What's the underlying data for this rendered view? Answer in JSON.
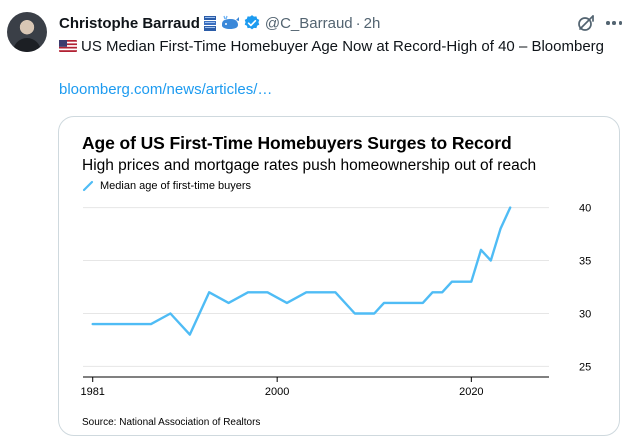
{
  "author": {
    "name": "Christophe Barraud",
    "handle": "@C_Barraud",
    "separator": "·",
    "time": "2h"
  },
  "icons": {
    "avatar": "avatar",
    "name_emojis": [
      "stacked-books-icon",
      "whale-icon"
    ],
    "verified": "verified-badge-icon",
    "grok": "grok-icon",
    "more": "more-options-icon",
    "flag": "us-flag-icon"
  },
  "colors": {
    "link": "#1d9bf0",
    "verified": "#1d9bf0",
    "chart_line": "#4fbcf5",
    "gridline": "#e6e6e6"
  },
  "tweet": {
    "text": "US Median First-Time Homebuyer Age Now at Record-High of 40 – Bloomberg",
    "link": "bloomberg.com/news/articles/…"
  },
  "chart_data": {
    "type": "line",
    "title": "Age of US First-Time Homebuyers Surges to Record",
    "subtitle": "High prices and mortgage rates push homeownership out of reach",
    "legend": [
      "Median age of first-time buyers"
    ],
    "source": "Source: National Association of Realtors",
    "x_ticks": [
      1981,
      2000,
      2020
    ],
    "y_ticks": [
      25,
      30,
      35,
      40
    ],
    "xlim": [
      1980,
      2028
    ],
    "ylim": [
      24,
      41
    ],
    "grid": "horizontal",
    "series": [
      {
        "name": "Median age of first-time buyers",
        "x": [
          1981,
          1985,
          1987,
          1989,
          1991,
          1993,
          1995,
          1997,
          1999,
          2001,
          2003,
          2004,
          2006,
          2008,
          2010,
          2011,
          2013,
          2015,
          2016,
          2017,
          2018,
          2019,
          2020,
          2021,
          2022,
          2023,
          2024
        ],
        "y": [
          29,
          29,
          29,
          30,
          28,
          32,
          31,
          32,
          32,
          31,
          32,
          32,
          32,
          30,
          30,
          31,
          31,
          31,
          32,
          32,
          33,
          33,
          33,
          36,
          35,
          38,
          40
        ]
      }
    ]
  }
}
